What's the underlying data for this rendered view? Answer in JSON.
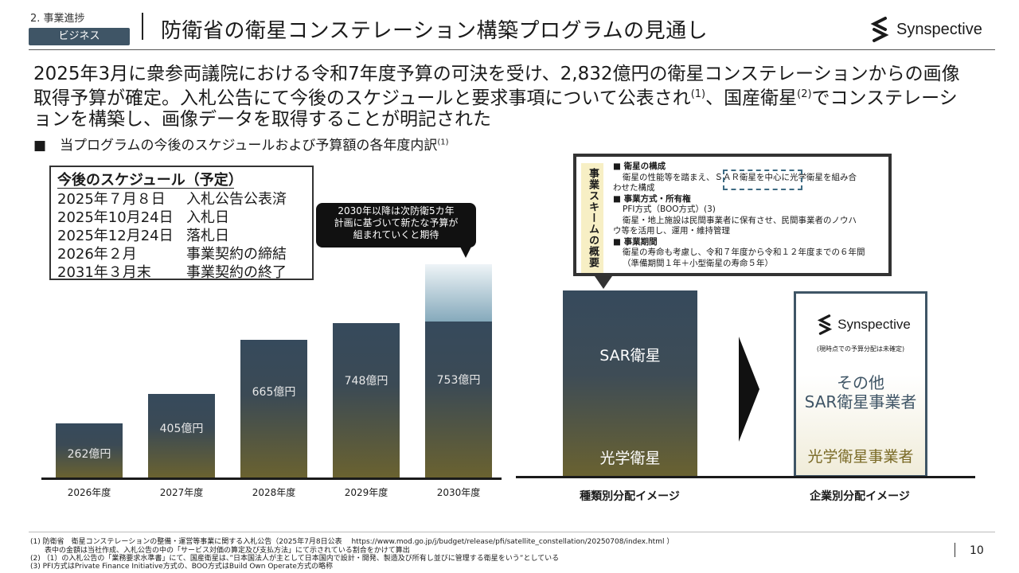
{
  "header": {
    "section": "2. 事業進捗",
    "badge": "ビジネス",
    "title": "防衛省の衛星コンステレーション構築プログラムの見通し",
    "logo_text": "Synspective"
  },
  "lead": {
    "part1": "2025年3月に衆参両議院における令和7年度予算の可決を受け、2,832億円の衛星コンステレーションからの画像取得予算が確定。入札公告にて今後のスケジュールと要求事項について公表され",
    "sup1": "(1)",
    "part2": "、国産衛星",
    "sup2": "(2)",
    "part3": "でコンステレーションを構築し、画像データを取得することが明記された"
  },
  "bullet": {
    "marker": "■",
    "text": "当プログラムの今後のスケジュールおよび予算額の各年度内訳",
    "sup": "(1)"
  },
  "schedule": {
    "title": "今後のスケジュール（予定）",
    "rows": [
      {
        "date": "2025年７月８日",
        "event": "入札公告公表済"
      },
      {
        "date": "2025年10月24日",
        "event": "入札日"
      },
      {
        "date": "2025年12月24日",
        "event": "落札日"
      },
      {
        "date": "2026年２月",
        "event": "事業契約の締結"
      },
      {
        "date": "2031年３月末",
        "event": "事業契約の終了"
      }
    ]
  },
  "bubble": {
    "line1": "2030年以降は次防衛5カ年",
    "line2": "計画に基づいて新たな予算が",
    "line3": "組まれていくと期待"
  },
  "chart_data": {
    "type": "bar",
    "categories": [
      "2026年度",
      "2027年度",
      "2028年度",
      "2029年度",
      "2030年度"
    ],
    "values": [
      262,
      405,
      665,
      748,
      753
    ],
    "value_labels": [
      "262億円",
      "405億円",
      "665億円",
      "748億円",
      "753億円"
    ],
    "unit": "億円",
    "title": "",
    "xlabel": "",
    "ylabel": ""
  },
  "scheme": {
    "side_label": "事業スキームの概要",
    "h1": "■ 衛星の構成",
    "t1a": "衛星の性能等を踏まえ、ＳＡＲ衛星を中心に光学衛星を組み合",
    "t1b": "わせた構成",
    "h2": "■ 事業方式・所有権",
    "t2a": "PFI方式（BOO方式）(3)",
    "t2b": "衛星・地上施設は民間事業者に保有させ、民間事業者のノウハ",
    "t2c": "ウ等を活用し、運用・維持管理",
    "h3": "■ 事業期間",
    "t3a": "衛星の寿命も考慮し、令和７年度から令和１２年度までの６年間",
    "t3b": "（準備期間１年＋小型衛星の寿命５年）"
  },
  "type_image": {
    "top_label": "SAR衛星",
    "bottom_label": "光学衛星",
    "caption": "種類別分配イメージ"
  },
  "company_image": {
    "logo_text": "Synspective",
    "note": "(現時点での予算分配は未確定)",
    "other_line1": "その他",
    "other_line2": "SAR衛星事業者",
    "optical": "光学衛星事業者",
    "caption": "企業別分配イメージ"
  },
  "footnotes": {
    "f1": "(1) 防衛省　衛星コンステレーションの整備・運営等事業に関する入札公告（2025年7月8日公表　 https://www.mod.go.jp/j/budget/release/pfi/satellite_constellation/20250708/index.html ）",
    "f1b": "表中の金額は当社作成、入札公告の中の「サービス対価の算定及び支払方法」にて示されている割合をかけて算出",
    "f2": "(2) （1）の入札公告の「業務要求水準書」にて、国産衛星は、”日本国法人が主として日本国内で設計・開発、製造及び所有し並びに管理する衛星をいう”としている",
    "f3": "(3) PFI方式はPrivate Finance Initiative方式の、BOO方式はBuild Own Operate方式の略称"
  },
  "page_number": "10",
  "colors": {
    "badge": "#3f5566",
    "bar_top": "#364a5c",
    "bar_bottom": "#6a6230",
    "company_border": "#3f5566",
    "optical_text": "#7a6a26"
  }
}
